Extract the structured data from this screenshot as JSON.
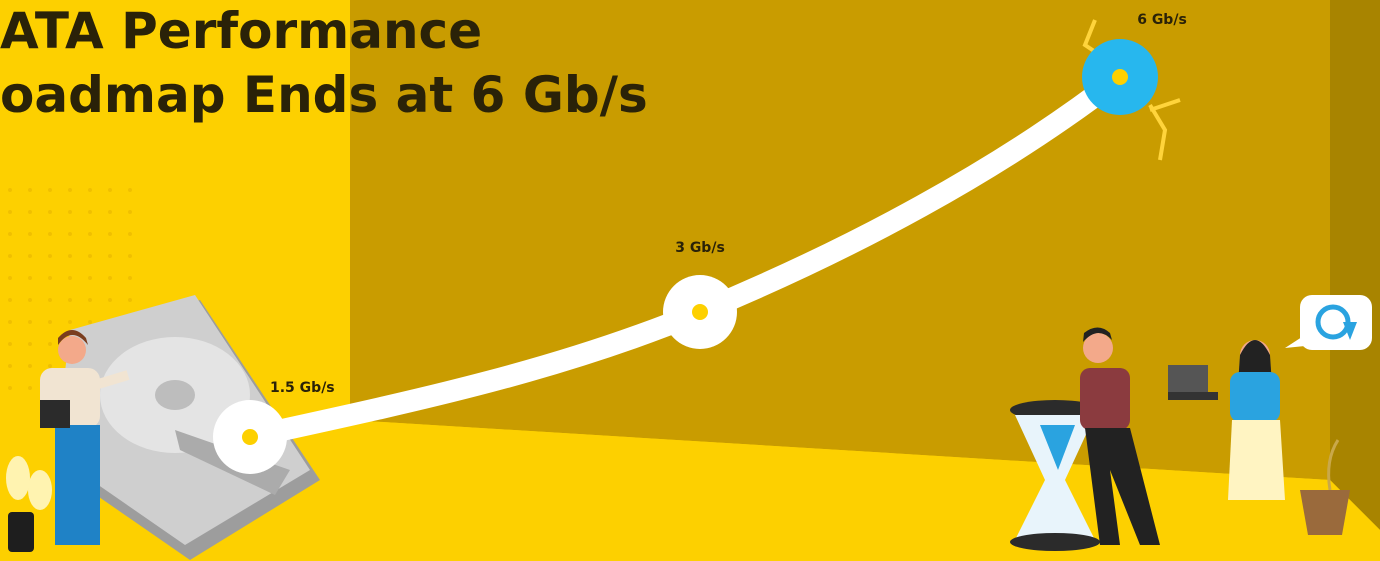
{
  "header": {
    "title_lines": [
      "ATA Performance",
      "oadmap Ends at 6 Gb/s"
    ]
  },
  "milestones": [
    {
      "label": "1.5 Gb/s"
    },
    {
      "label": "3 Gb/s"
    },
    {
      "label": "6 Gb/s"
    }
  ]
}
